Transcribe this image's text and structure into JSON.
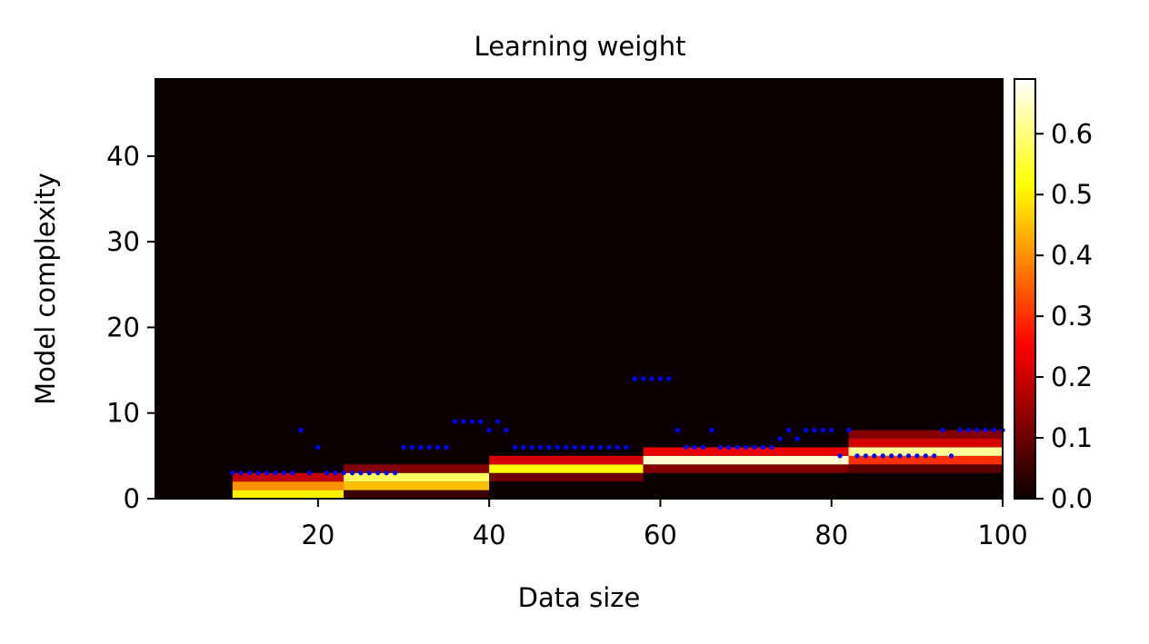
{
  "chart_data": {
    "type": "heatmap",
    "title": "Learning weight",
    "xlabel": "Data size",
    "ylabel": "Model complexity",
    "xlim": [
      1,
      100
    ],
    "ylim": [
      0,
      49
    ],
    "xticks": [
      20,
      40,
      60,
      80,
      100
    ],
    "yticks": [
      0,
      10,
      20,
      30,
      40
    ],
    "grid": false,
    "colormap": "hot",
    "colorbar": {
      "range": [
        0.0,
        0.69
      ],
      "ticks": [
        0.0,
        0.1,
        0.2,
        0.3,
        0.4,
        0.5,
        0.6
      ],
      "tick_labels": [
        "0.0",
        "0.1",
        "0.2",
        "0.3",
        "0.4",
        "0.5",
        "0.6"
      ]
    },
    "heatmap_bands": [
      {
        "x": [
          10,
          23
        ],
        "rows": [
          {
            "y": [
              0,
              1
            ],
            "value": 0.5
          },
          {
            "y": [
              1,
              2
            ],
            "value": 0.4
          },
          {
            "y": [
              2,
              3
            ],
            "value": 0.18
          }
        ]
      },
      {
        "x": [
          23,
          40
        ],
        "rows": [
          {
            "y": [
              0,
              1
            ],
            "value": 0.05
          },
          {
            "y": [
              1,
              2
            ],
            "value": 0.45
          },
          {
            "y": [
              2,
              3
            ],
            "value": 0.58
          },
          {
            "y": [
              3,
              4
            ],
            "value": 0.12
          }
        ]
      },
      {
        "x": [
          40,
          58
        ],
        "rows": [
          {
            "y": [
              2,
              3
            ],
            "value": 0.1
          },
          {
            "y": [
              3,
              4
            ],
            "value": 0.52
          },
          {
            "y": [
              4,
              5
            ],
            "value": 0.2
          }
        ]
      },
      {
        "x": [
          58,
          82
        ],
        "rows": [
          {
            "y": [
              3,
              4
            ],
            "value": 0.12
          },
          {
            "y": [
              4,
              5
            ],
            "value": 0.66
          },
          {
            "y": [
              5,
              6
            ],
            "value": 0.22
          }
        ]
      },
      {
        "x": [
          82,
          100
        ],
        "rows": [
          {
            "y": [
              3,
              4
            ],
            "value": 0.08
          },
          {
            "y": [
              4,
              5
            ],
            "value": 0.3
          },
          {
            "y": [
              5,
              6
            ],
            "value": 0.62
          },
          {
            "y": [
              6,
              7
            ],
            "value": 0.2
          },
          {
            "y": [
              7,
              8
            ],
            "value": 0.12
          }
        ]
      }
    ],
    "points": {
      "color": "#0000ff",
      "x": [
        10,
        11,
        12,
        13,
        14,
        15,
        16,
        17,
        18,
        19,
        20,
        21,
        22,
        23,
        24,
        25,
        26,
        27,
        28,
        29,
        30,
        31,
        32,
        33,
        34,
        35,
        36,
        37,
        38,
        39,
        40,
        41,
        42,
        43,
        44,
        45,
        46,
        47,
        48,
        49,
        50,
        51,
        52,
        53,
        54,
        55,
        56,
        57,
        58,
        59,
        60,
        61,
        62,
        63,
        64,
        65,
        66,
        67,
        68,
        69,
        70,
        71,
        72,
        73,
        74,
        75,
        76,
        77,
        78,
        79,
        80,
        81,
        82,
        83,
        84,
        85,
        86,
        87,
        88,
        89,
        90,
        91,
        92,
        93,
        94,
        95,
        96,
        97,
        98,
        99,
        100
      ],
      "y": [
        3,
        3,
        3,
        3,
        3,
        3,
        3,
        3,
        8,
        3,
        6,
        3,
        3,
        3,
        3,
        3,
        3,
        3,
        3,
        3,
        6,
        6,
        6,
        6,
        6,
        6,
        9,
        9,
        9,
        9,
        8,
        9,
        8,
        6,
        6,
        6,
        6,
        6,
        6,
        6,
        6,
        6,
        6,
        6,
        6,
        6,
        6,
        14,
        14,
        14,
        14,
        14,
        8,
        6,
        6,
        6,
        8,
        6,
        6,
        6,
        6,
        6,
        6,
        6,
        7,
        8,
        7,
        8,
        8,
        8,
        8,
        5,
        8,
        5,
        5,
        5,
        5,
        5,
        5,
        5,
        5,
        5,
        5,
        8,
        5,
        8,
        8,
        8,
        8,
        8,
        8
      ]
    }
  }
}
